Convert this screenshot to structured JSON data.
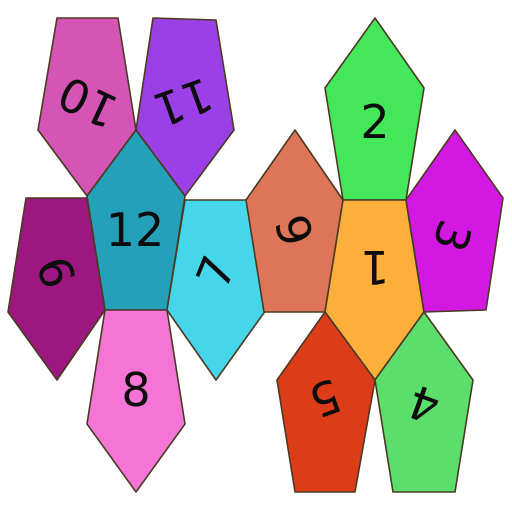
{
  "faces": [
    {
      "id": "face-10",
      "label": "10",
      "color": "#d455b6"
    },
    {
      "id": "face-11",
      "label": "11",
      "color": "#9b3fe6"
    },
    {
      "id": "face-12",
      "label": "12",
      "color": "#24a1b9"
    },
    {
      "id": "face-9",
      "label": "9",
      "color": "#9c1780"
    },
    {
      "id": "face-8",
      "label": "8",
      "color": "#f575d6"
    },
    {
      "id": "face-7",
      "label": "7",
      "color": "#45d6ea"
    },
    {
      "id": "face-6",
      "label": "6",
      "color": "#de7558"
    },
    {
      "id": "face-2",
      "label": "2",
      "color": "#45e75a"
    },
    {
      "id": "face-1",
      "label": "1",
      "color": "#fdaf3c"
    },
    {
      "id": "face-3",
      "label": "3",
      "color": "#d418e3"
    },
    {
      "id": "face-5",
      "label": "5",
      "color": "#dc3c18"
    },
    {
      "id": "face-4",
      "label": "4",
      "color": "#5bde6b"
    }
  ]
}
